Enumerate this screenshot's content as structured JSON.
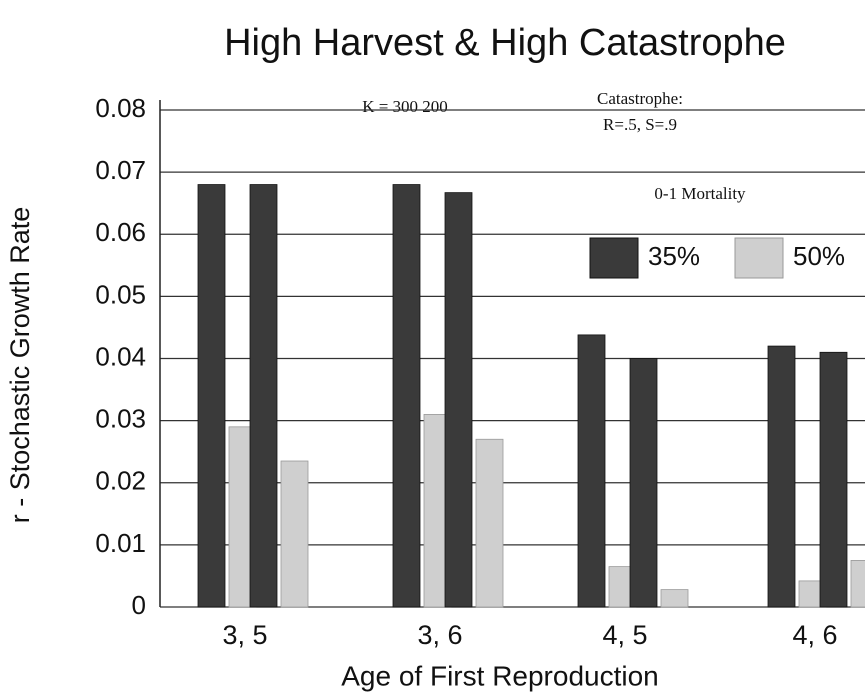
{
  "chart_data": {
    "type": "bar",
    "title": "High Harvest & High Catastrophe",
    "x_label": "Age of First Reproduction",
    "y_label": "r - Stochastic Growth Rate",
    "annotations": [
      "K = 300  200",
      "Catastrophe:",
      "R=.5, S=.9"
    ],
    "legend_title": "0-1 Mortality",
    "categories": [
      "3, 5",
      "3, 6",
      "4, 5",
      "4, 6"
    ],
    "series": [
      {
        "name": "35%",
        "color": "#3a3a3a",
        "values": [
          [
            0.068,
            0.068
          ],
          [
            0.068,
            0.0667
          ],
          [
            0.0438,
            0.04
          ],
          [
            0.042,
            0.041
          ]
        ]
      },
      {
        "name": "50%",
        "color": "#cfcfcf",
        "values": [
          [
            0.029,
            0.0235
          ],
          [
            0.031,
            0.027
          ],
          [
            0.0065,
            0.0028
          ],
          [
            0.0042,
            0.0075
          ]
        ]
      }
    ],
    "ylim": [
      0,
      0.08
    ],
    "yticks": [
      0,
      0.01,
      0.02,
      0.03,
      0.04,
      0.05,
      0.06,
      0.07,
      0.08
    ],
    "grid": true
  }
}
